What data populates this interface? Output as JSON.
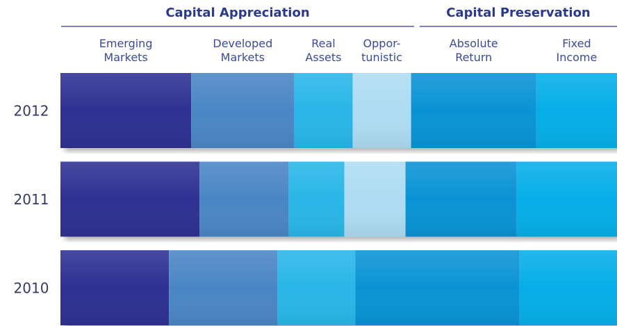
{
  "chart_data": {
    "type": "bar",
    "orientation": "horizontal",
    "stacked": true,
    "group_titles": [
      "Capital Appreciation",
      "Capital Preservation"
    ],
    "categories": [
      "2012",
      "2011",
      "2010"
    ],
    "xlim": [
      0,
      100
    ],
    "series": [
      {
        "name": "Emerging\nMarkets",
        "color": "#2e3192",
        "values": [
          23.5,
          25,
          19.5
        ]
      },
      {
        "name": "Developed\nMarkets",
        "color": "#4a86c5",
        "values": [
          18.5,
          16,
          19.5
        ]
      },
      {
        "name": "Real\nAssets",
        "color": "#29b6e8",
        "values": [
          10.5,
          10,
          14
        ]
      },
      {
        "name": "Oppor-\ntunistic",
        "color": "#aedcf2",
        "values": [
          10.5,
          11,
          0
        ]
      },
      {
        "name": "Absolute\nReturn",
        "color": "#0a93d4",
        "values": [
          22.5,
          20,
          29.5
        ]
      },
      {
        "name": "Fixed\nIncome",
        "color": "#06aee8",
        "values": [
          14.5,
          18,
          17.5
        ]
      }
    ]
  }
}
